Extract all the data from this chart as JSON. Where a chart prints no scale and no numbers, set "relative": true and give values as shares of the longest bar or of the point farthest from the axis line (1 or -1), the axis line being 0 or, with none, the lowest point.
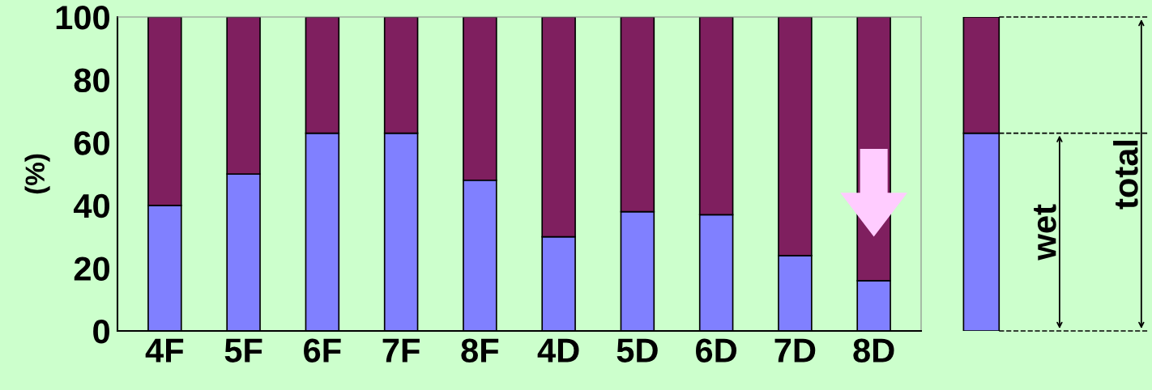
{
  "chart_data": [
    {
      "type": "bar",
      "stacked": true,
      "ylabel": "(%)",
      "categories": [
        "4F",
        "5F",
        "6F",
        "7F",
        "8F",
        "4D",
        "5D",
        "6D",
        "7D",
        "8D"
      ],
      "series": [
        {
          "color": "#8080ff",
          "values": [
            40,
            50,
            63,
            63,
            48,
            30,
            38,
            37,
            24,
            16
          ]
        },
        {
          "color": "#7f1f5f",
          "values": [
            60,
            50,
            37,
            37,
            52,
            70,
            62,
            63,
            76,
            84
          ]
        }
      ],
      "ylim": [
        0,
        100
      ],
      "yticks": [
        0,
        20,
        40,
        60,
        80,
        100
      ],
      "grid": false,
      "legend": false
    },
    {
      "type": "bar",
      "stacked": true,
      "relative": true,
      "categories": [
        null
      ],
      "series": [
        {
          "color": "#8080ff",
          "values": [
            0.63
          ]
        },
        {
          "color": "#7f1f5f",
          "values": [
            0.37
          ]
        }
      ],
      "annotations": [
        "wet",
        "total"
      ]
    }
  ]
}
